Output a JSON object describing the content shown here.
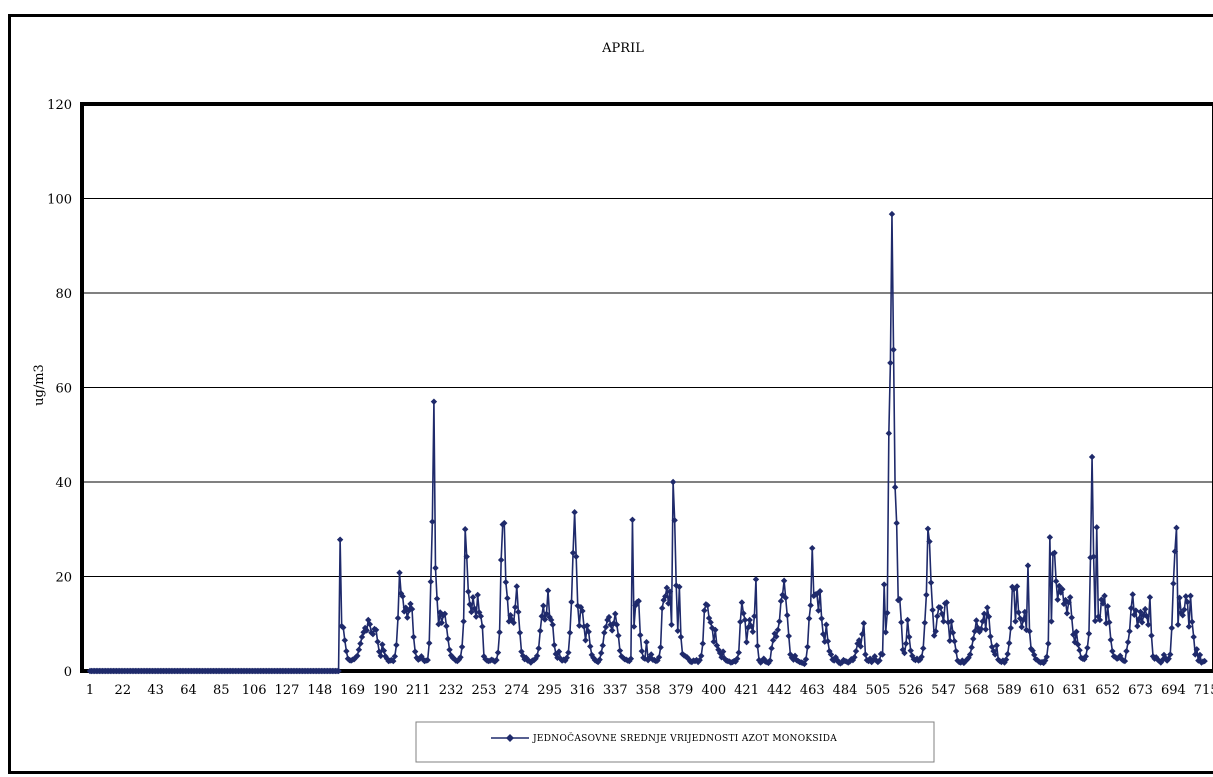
{
  "chart_data": {
    "type": "line",
    "title": "APRIL",
    "ylabel": "ug/m3",
    "xlabel": "",
    "ylim": [
      0,
      120
    ],
    "yticks": [
      0,
      20,
      40,
      60,
      80,
      100,
      120
    ],
    "xlim": [
      1,
      720
    ],
    "xticks": [
      1,
      22,
      43,
      64,
      85,
      106,
      127,
      148,
      169,
      190,
      211,
      232,
      253,
      274,
      295,
      316,
      337,
      358,
      379,
      400,
      421,
      442,
      463,
      484,
      505,
      526,
      547,
      568,
      589,
      610,
      631,
      652,
      673,
      694,
      715
    ],
    "grid": true,
    "legend_position": "bottom",
    "series": [
      {
        "name": "JEDNOČASOVNE SREDNJE VRIJEDNOSTI AZOT MONOKSIDA",
        "color": "#1f2a6b",
        "marker": "diamond",
        "x_start": 161,
        "x_step": 1,
        "values": [
          27.8,
          9.5,
          9.2,
          6.5,
          4.2,
          2.6,
          2.3,
          2.2,
          2.4,
          2.5,
          2.9,
          3.2,
          4.5,
          5.8,
          7.2,
          8.2,
          9.1,
          8.6,
          10.8,
          9.9,
          8.1,
          7.8,
          8.9,
          8.7,
          6.2,
          4.1,
          3.2,
          5.6,
          4.3,
          3.1,
          2.6,
          2.1,
          2.2,
          2.3,
          2.1,
          3.1,
          5.5,
          11.2,
          20.8,
          16.4,
          15.8,
          12.6,
          13.4,
          11.3,
          12.8,
          14.2,
          13.1,
          7.2,
          4.1,
          2.8,
          2.4,
          2.6,
          3.1,
          2.5,
          2.1,
          2.2,
          2.3,
          5.9,
          18.9,
          31.6,
          57.0,
          21.8,
          15.3,
          9.9,
          12.4,
          10.2,
          11.8,
          12.1,
          9.5,
          6.8,
          4.5,
          3.3,
          2.8,
          2.6,
          2.2,
          2.1,
          2.4,
          2.9,
          5.1,
          10.5,
          30.0,
          24.2,
          16.8,
          14.1,
          12.5,
          15.6,
          13.2,
          11.5,
          16.1,
          12.4,
          11.6,
          9.4,
          3.1,
          2.5,
          2.2,
          2.1,
          2.2,
          2.4,
          2.2,
          2.0,
          2.3,
          3.9,
          8.2,
          23.5,
          31.0,
          31.3,
          18.8,
          15.4,
          10.5,
          11.8,
          10.8,
          10.2,
          13.5,
          17.9,
          12.5,
          8.1,
          4.1,
          3.2,
          2.5,
          2.8,
          2.2,
          2.1,
          1.8,
          2.2,
          2.3,
          2.6,
          3.2,
          4.8,
          8.5,
          11.6,
          13.8,
          10.9,
          12.1,
          17.0,
          11.4,
          10.8,
          9.8,
          5.5,
          3.6,
          2.8,
          4.1,
          2.6,
          2.2,
          2.4,
          2.2,
          2.8,
          3.9,
          8.1,
          14.6,
          25.0,
          33.6,
          24.2,
          13.8,
          9.6,
          13.5,
          12.7,
          9.4,
          6.5,
          9.6,
          8.3,
          5.2,
          3.4,
          2.8,
          2.3,
          2.1,
          1.9,
          2.4,
          3.8,
          5.4,
          8.1,
          9.3,
          10.8,
          11.4,
          9.8,
          8.6,
          10.1,
          12.1,
          9.8,
          7.5,
          4.3,
          3.1,
          2.8,
          2.5,
          2.4,
          2.2,
          2.1,
          2.6,
          32.0,
          9.4,
          13.9,
          14.6,
          14.8,
          7.6,
          4.2,
          2.8,
          2.6,
          6.1,
          2.3,
          2.8,
          3.5,
          2.4,
          2.3,
          2.1,
          2.2,
          2.9,
          5.0,
          13.3,
          15.0,
          15.8,
          17.6,
          14.3,
          16.8,
          9.8,
          40.0,
          31.9,
          18.1,
          8.5,
          17.8,
          7.2,
          3.6,
          3.3,
          3.1,
          2.9,
          2.5,
          2.0,
          1.9,
          2.2,
          2.1,
          2.3,
          1.9,
          2.3,
          3.2,
          5.8,
          12.8,
          14.1,
          13.9,
          11.2,
          10.3,
          9.1,
          6.2,
          8.7,
          5.4,
          4.5,
          3.8,
          2.9,
          4.1,
          2.6,
          2.2,
          2.1,
          2.0,
          1.8,
          1.9,
          2.1,
          2.0,
          2.6,
          3.9,
          10.4,
          14.5,
          12.2,
          10.8,
          6.1,
          9.2,
          10.8,
          9.5,
          8.3,
          11.6,
          19.4,
          5.3,
          2.3,
          1.8,
          2.1,
          2.6,
          2.0,
          1.9,
          1.7,
          2.2,
          4.8,
          6.5,
          7.9,
          7.3,
          8.7,
          10.5,
          14.8,
          16.1,
          19.1,
          15.5,
          11.8,
          7.4,
          3.5,
          2.8,
          2.4,
          3.2,
          2.3,
          2.1,
          1.9,
          1.8,
          1.7,
          1.5,
          2.5,
          5.1,
          11.1,
          13.9,
          26.0,
          15.9,
          16.2,
          16.3,
          12.8,
          16.9,
          11.1,
          7.8,
          6.2,
          9.8,
          6.3,
          4.2,
          3.5,
          2.4,
          2.2,
          2.9,
          2.3,
          1.8,
          1.6,
          1.8,
          2.3,
          2.1,
          2.0,
          1.8,
          2.0,
          2.5,
          2.3,
          2.9,
          4.2,
          5.8,
          6.5,
          5.2,
          7.8,
          10.1,
          3.5,
          2.3,
          2.1,
          2.6,
          1.9,
          2.4,
          3.1,
          2.2,
          1.9,
          2.2,
          3.6,
          3.5,
          18.3,
          8.2,
          12.3,
          50.3,
          65.2,
          96.7,
          68.0,
          38.9,
          31.3,
          15.0,
          15.2,
          10.3,
          4.5,
          3.8,
          5.8,
          10.8,
          7.2,
          4.3,
          3.2,
          2.5,
          2.3,
          2.6,
          2.2,
          2.4,
          3.0,
          4.8,
          10.2,
          16.1,
          30.1,
          27.4,
          18.7,
          12.9,
          7.5,
          8.4,
          11.6,
          13.5,
          13.4,
          12.1,
          10.5,
          14.3,
          14.5,
          10.3,
          6.4,
          10.5,
          8.1,
          6.3,
          4.2,
          2.2,
          1.9,
          1.8,
          2.2,
          1.7,
          2.1,
          2.4,
          2.8,
          3.5,
          5.0,
          6.8,
          8.4,
          10.7,
          9.1,
          8.3,
          8.9,
          10.5,
          12.1,
          8.8,
          13.4,
          11.5,
          7.3,
          5.1,
          4.2,
          3.5,
          5.4,
          2.4,
          2.1,
          1.9,
          2.2,
          1.8,
          2.4,
          3.6,
          5.9,
          9.1,
          17.8,
          17.3,
          10.5,
          17.9,
          12.4,
          11.1,
          9.3,
          10.8,
          12.5,
          8.7,
          22.3,
          8.4,
          4.7,
          4.3,
          3.4,
          2.5,
          2.3,
          2.0,
          1.8,
          1.9,
          1.7,
          2.2,
          3.0,
          5.8,
          28.3,
          10.5,
          24.8,
          25.0,
          19.0,
          15.1,
          18.0,
          16.6,
          17.3,
          14.2,
          15.0,
          12.2,
          14.5,
          15.6,
          11.3,
          7.7,
          6.1,
          8.3,
          5.6,
          4.4,
          2.8,
          2.6,
          2.5,
          3.1,
          4.9,
          7.9,
          24.0,
          45.3,
          24.2,
          10.6,
          30.4,
          11.5,
          10.8,
          15.1,
          14.3,
          15.9,
          10.1,
          13.7,
          10.3,
          6.6,
          4.2,
          3.1,
          2.9,
          2.6,
          2.8,
          3.2,
          2.5,
          2.2,
          2.1,
          4.2,
          6.1,
          8.4,
          13.3,
          16.2,
          11.9,
          12.8,
          9.5,
          11.0,
          12.5,
          10.3,
          11.8,
          13.1,
          11.6,
          9.8,
          15.6,
          7.5,
          3.1,
          2.6,
          2.9,
          2.4,
          2.1,
          1.8,
          2.3,
          3.4,
          2.7,
          2.2,
          2.6,
          3.5,
          9.1,
          18.5,
          25.3,
          30.3,
          9.8,
          15.5,
          12.3,
          11.8,
          13.0,
          15.8,
          14.6,
          9.4,
          15.9,
          10.4,
          7.2,
          3.5,
          4.6,
          2.2,
          3.4,
          1.8,
          2.0,
          2.1
        ]
      }
    ]
  }
}
